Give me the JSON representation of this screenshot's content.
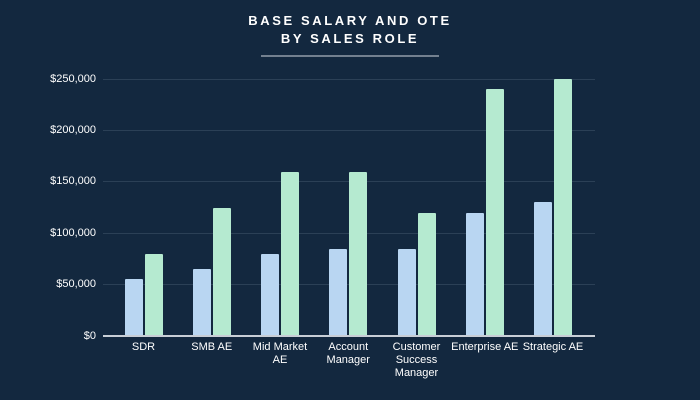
{
  "slide": {
    "title_line1": "BASE SALARY AND OTE",
    "title_line2": "BY SALES ROLE"
  },
  "colors": {
    "background": "#13283F",
    "title_text": "#FFFFFF",
    "axis_text": "#FFFFFF",
    "gridline": "#2B4056",
    "baseline": "#C8CED6",
    "divider": "#73808F",
    "base_salary_bar": "#B9D6F2",
    "ote_bar": "#B5EAD0"
  },
  "chart_data": {
    "type": "bar",
    "title": "BASE SALARY AND OTE BY SALES ROLE",
    "categories": [
      "SDR",
      "SMB AE",
      "Mid Market AE",
      "Account Manager",
      "Customer Success Manager",
      "Enterprise AE",
      "Strategic AE"
    ],
    "series": [
      {
        "name": "Base Salary",
        "color": "#B9D6F2",
        "values": [
          55000,
          65000,
          80000,
          85000,
          85000,
          120000,
          130000
        ]
      },
      {
        "name": "OTE",
        "color": "#B5EAD0",
        "values": [
          80000,
          125000,
          160000,
          160000,
          120000,
          240000,
          250000
        ]
      }
    ],
    "xlabel": "",
    "ylabel": "",
    "ylim": [
      0,
      250000
    ],
    "y_ticks": [
      {
        "value": 0,
        "label": "$0"
      },
      {
        "value": 50000,
        "label": "$50,000"
      },
      {
        "value": 100000,
        "label": "$100,000"
      },
      {
        "value": 150000,
        "label": "$150,000"
      },
      {
        "value": 200000,
        "label": "$200,000"
      },
      {
        "value": 250000,
        "label": "$250,000"
      }
    ],
    "grid": true,
    "legend": "none"
  }
}
